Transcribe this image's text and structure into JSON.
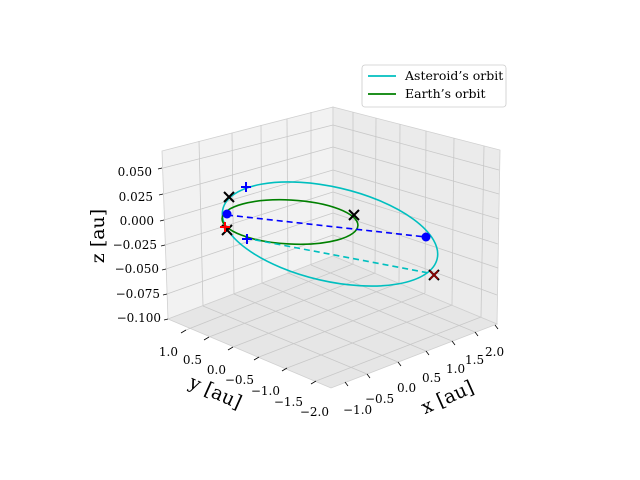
{
  "chart_data": {
    "type": "line3d",
    "xlabel": "x [au]",
    "ylabel": "y [au]",
    "zlabel": "z [au]",
    "xticks": [
      "−1.0",
      "−0.5",
      "0.0",
      "0.5",
      "1.0",
      "1.5",
      "2.0"
    ],
    "yticks": [
      "1.0",
      "0.5",
      "0.0",
      "−0.5",
      "−1.0",
      "−1.5",
      "−2.0"
    ],
    "zticks": [
      "0.050",
      "0.025",
      "0.000",
      "−0.025",
      "−0.050",
      "−0.075",
      "−0.100"
    ],
    "grid": true,
    "legend_position": "top-right",
    "series": [
      {
        "name": "Asteroid’s orbit",
        "color": "#00bfbf",
        "style": "solid",
        "shape": "ellipse"
      },
      {
        "name": "Earth’s orbit",
        "color": "#008000",
        "style": "solid",
        "shape": "ellipse"
      }
    ],
    "connectors": [
      {
        "color": "#0000ff",
        "style": "dashed"
      },
      {
        "color": "#00bfbf",
        "style": "dashed"
      }
    ],
    "markers": [
      {
        "kind": "plus",
        "color": "#0000ff",
        "count": 2
      },
      {
        "kind": "x",
        "color": "#000000",
        "count": 4
      },
      {
        "kind": "x",
        "color": "#8b0000",
        "count": 1
      },
      {
        "kind": "plus",
        "color": "#ff0000",
        "count": 1
      },
      {
        "kind": "dot",
        "color": "#0000ff",
        "count": 2
      }
    ]
  }
}
